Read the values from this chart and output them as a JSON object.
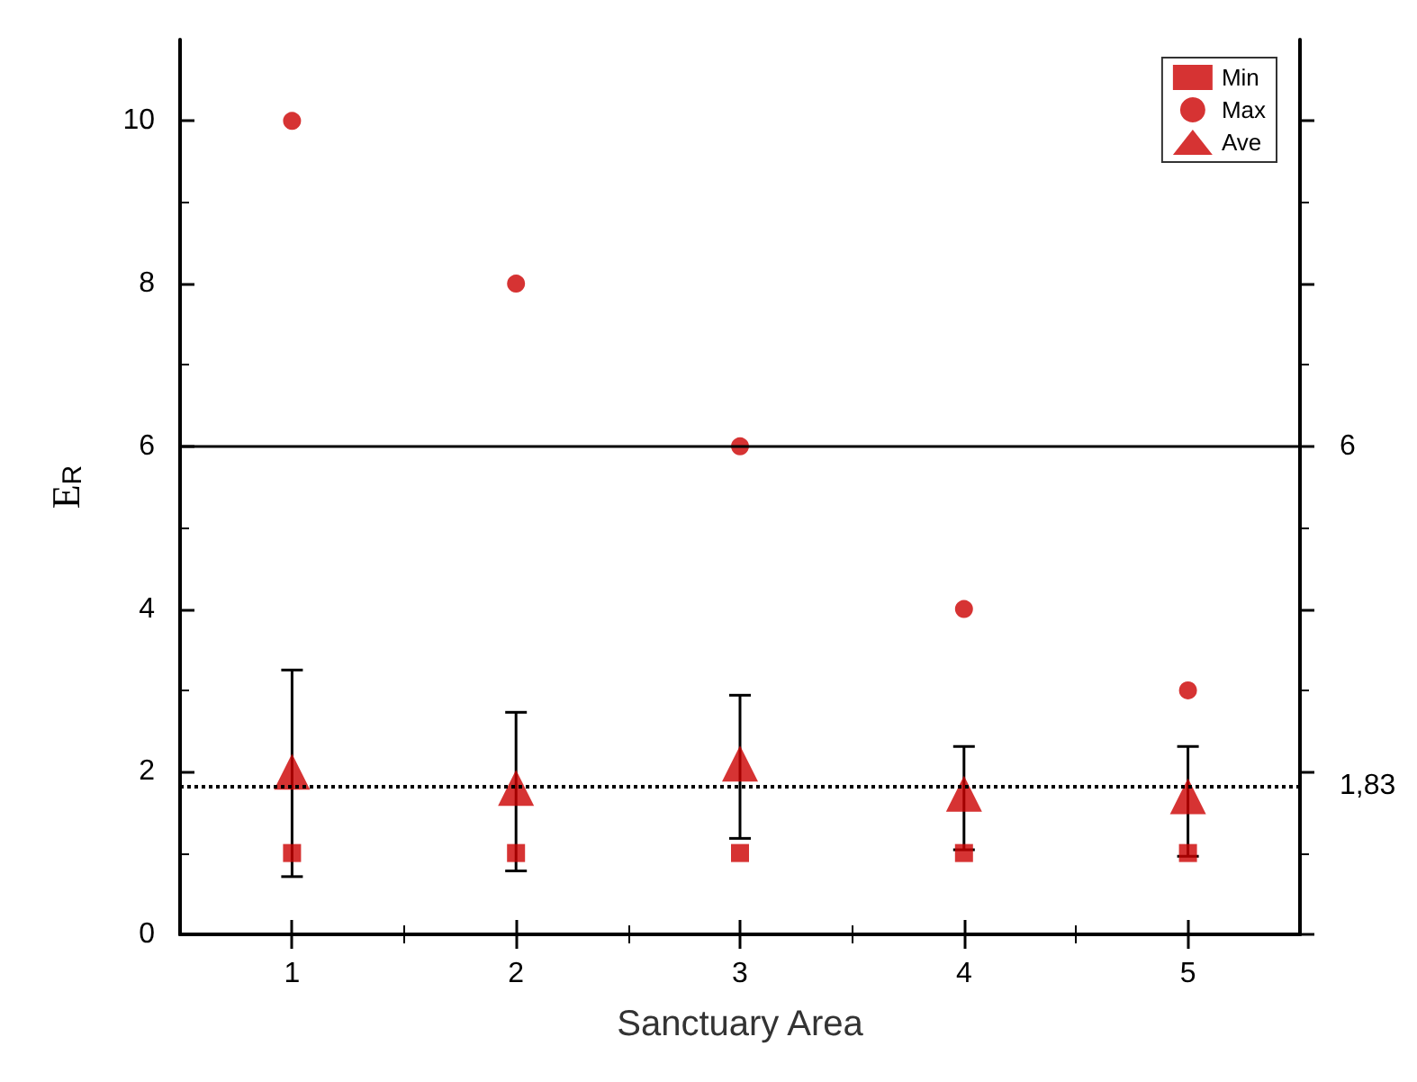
{
  "chart_data": {
    "type": "scatter",
    "xlabel": "Sanctuary Area",
    "ylabel": "E$_{R}$",
    "x": [
      1,
      2,
      3,
      4,
      5
    ],
    "xlim": [
      0.5,
      5.5
    ],
    "xticks": [
      1,
      2,
      3,
      4,
      5
    ],
    "ylim": [
      0,
      11
    ],
    "yticks": [
      0,
      2,
      4,
      6,
      8,
      10
    ],
    "series": [
      {
        "name": "Min",
        "color": "#cc0000",
        "marker": "square",
        "values": [
          1,
          1,
          1,
          1,
          1
        ]
      },
      {
        "name": "Max",
        "color": "#cc0000",
        "marker": "circle",
        "values": [
          10,
          8,
          6,
          4,
          3
        ]
      },
      {
        "name": "Ave",
        "color": "#cc0000",
        "marker": "triangle",
        "values": [
          2.0,
          1.8,
          2.1,
          1.73,
          1.7
        ],
        "errors": [
          [
            0.71,
            3.25
          ],
          [
            0.78,
            2.73
          ],
          [
            1.18,
            2.94
          ],
          [
            1.04,
            2.31
          ],
          [
            0.96,
            2.31
          ]
        ]
      }
    ],
    "ref_lines": [
      {
        "axis": "y",
        "value": 6,
        "label": "6",
        "color": "#000000",
        "line_style": "solid"
      },
      {
        "axis": "y",
        "value": 1.83,
        "label": "1,83",
        "color": "#000000",
        "line_style": "dotted"
      }
    ],
    "legend": "top right",
    "grid": false
  }
}
